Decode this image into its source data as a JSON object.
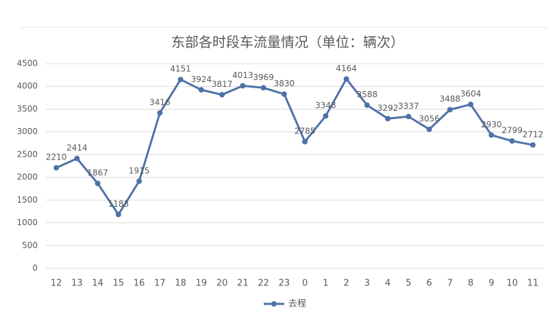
{
  "chart_data": {
    "type": "line",
    "title": "东部各时段车流量情况（单位：辆次）",
    "categories": [
      "12",
      "13",
      "14",
      "15",
      "16",
      "17",
      "18",
      "19",
      "20",
      "21",
      "22",
      "23",
      "0",
      "1",
      "2",
      "3",
      "4",
      "5",
      "6",
      "7",
      "8",
      "9",
      "10",
      "11"
    ],
    "series": [
      {
        "name": "去程",
        "color": "#4e72a8",
        "values": [
          2210,
          2414,
          1867,
          1183,
          1915,
          3416,
          4151,
          3924,
          3817,
          4013,
          3969,
          3830,
          2785,
          3348,
          4164,
          3588,
          3292,
          3337,
          3056,
          3488,
          3604,
          2930,
          2799,
          2712
        ]
      }
    ],
    "ylim": [
      0,
      4500
    ],
    "yticks": [
      0,
      500,
      1000,
      1500,
      2000,
      2500,
      3000,
      3500,
      4000,
      4500
    ],
    "grid": true,
    "legend": "bottom"
  }
}
